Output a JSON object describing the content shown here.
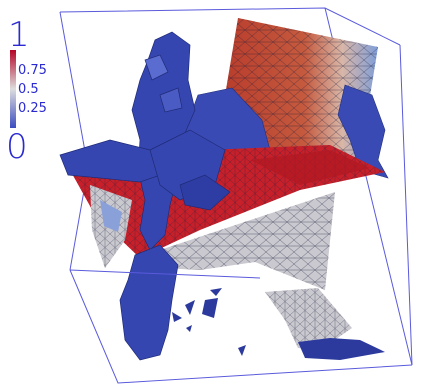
{
  "colorbar": {
    "max_label": "1",
    "tick_075": "0.75",
    "tick_05": "0.5",
    "tick_025": "0.25",
    "min_label": "0",
    "colors": {
      "low": "#3b4cc0",
      "mid": "#dddddd",
      "high": "#b40426"
    },
    "text_color": "#2a2ad0"
  },
  "scene": {
    "frame_color": "#5a5adc",
    "surface_blue": "#3a4ab5",
    "surface_red": "#c8202a",
    "surface_gray": "#c9c9cf",
    "mesh_color": "#1c1c3c"
  }
}
